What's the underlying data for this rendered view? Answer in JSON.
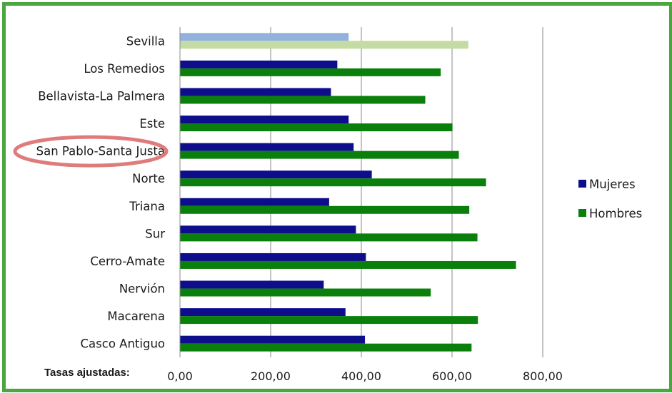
{
  "chart_data": {
    "type": "bar",
    "orientation": "horizontal",
    "xlabel": "Tasas ajustadas:",
    "xlim": [
      0,
      800
    ],
    "x_ticks": [
      "0,00",
      "200,00",
      "400,00",
      "600,00",
      "800,00"
    ],
    "grid": true,
    "legend_position": "right",
    "categories": [
      "Sevilla",
      "Los Remedios",
      "Bellavista-La Palmera",
      "Este",
      "San Pablo-Santa Justa",
      "Norte",
      "Triana",
      "Sur",
      "Cerro-Amate",
      "Nervión",
      "Macarena",
      "Casco Antiguo"
    ],
    "series": [
      {
        "name": "Mujeres",
        "color": "#0e0e8c",
        "highlight_color": "#93b1dd",
        "values": [
          372,
          347,
          333,
          372,
          383,
          423,
          329,
          388,
          410,
          317,
          365,
          408
        ]
      },
      {
        "name": "Hombres",
        "color": "#0b7f0b",
        "highlight_color": "#c4dba3",
        "values": [
          636,
          575,
          541,
          601,
          615,
          675,
          638,
          656,
          741,
          553,
          657,
          643
        ]
      }
    ],
    "highlighted_category": "Sevilla",
    "circled_category": "San Pablo-Santa Justa",
    "circle_color": "#e07b7b"
  }
}
